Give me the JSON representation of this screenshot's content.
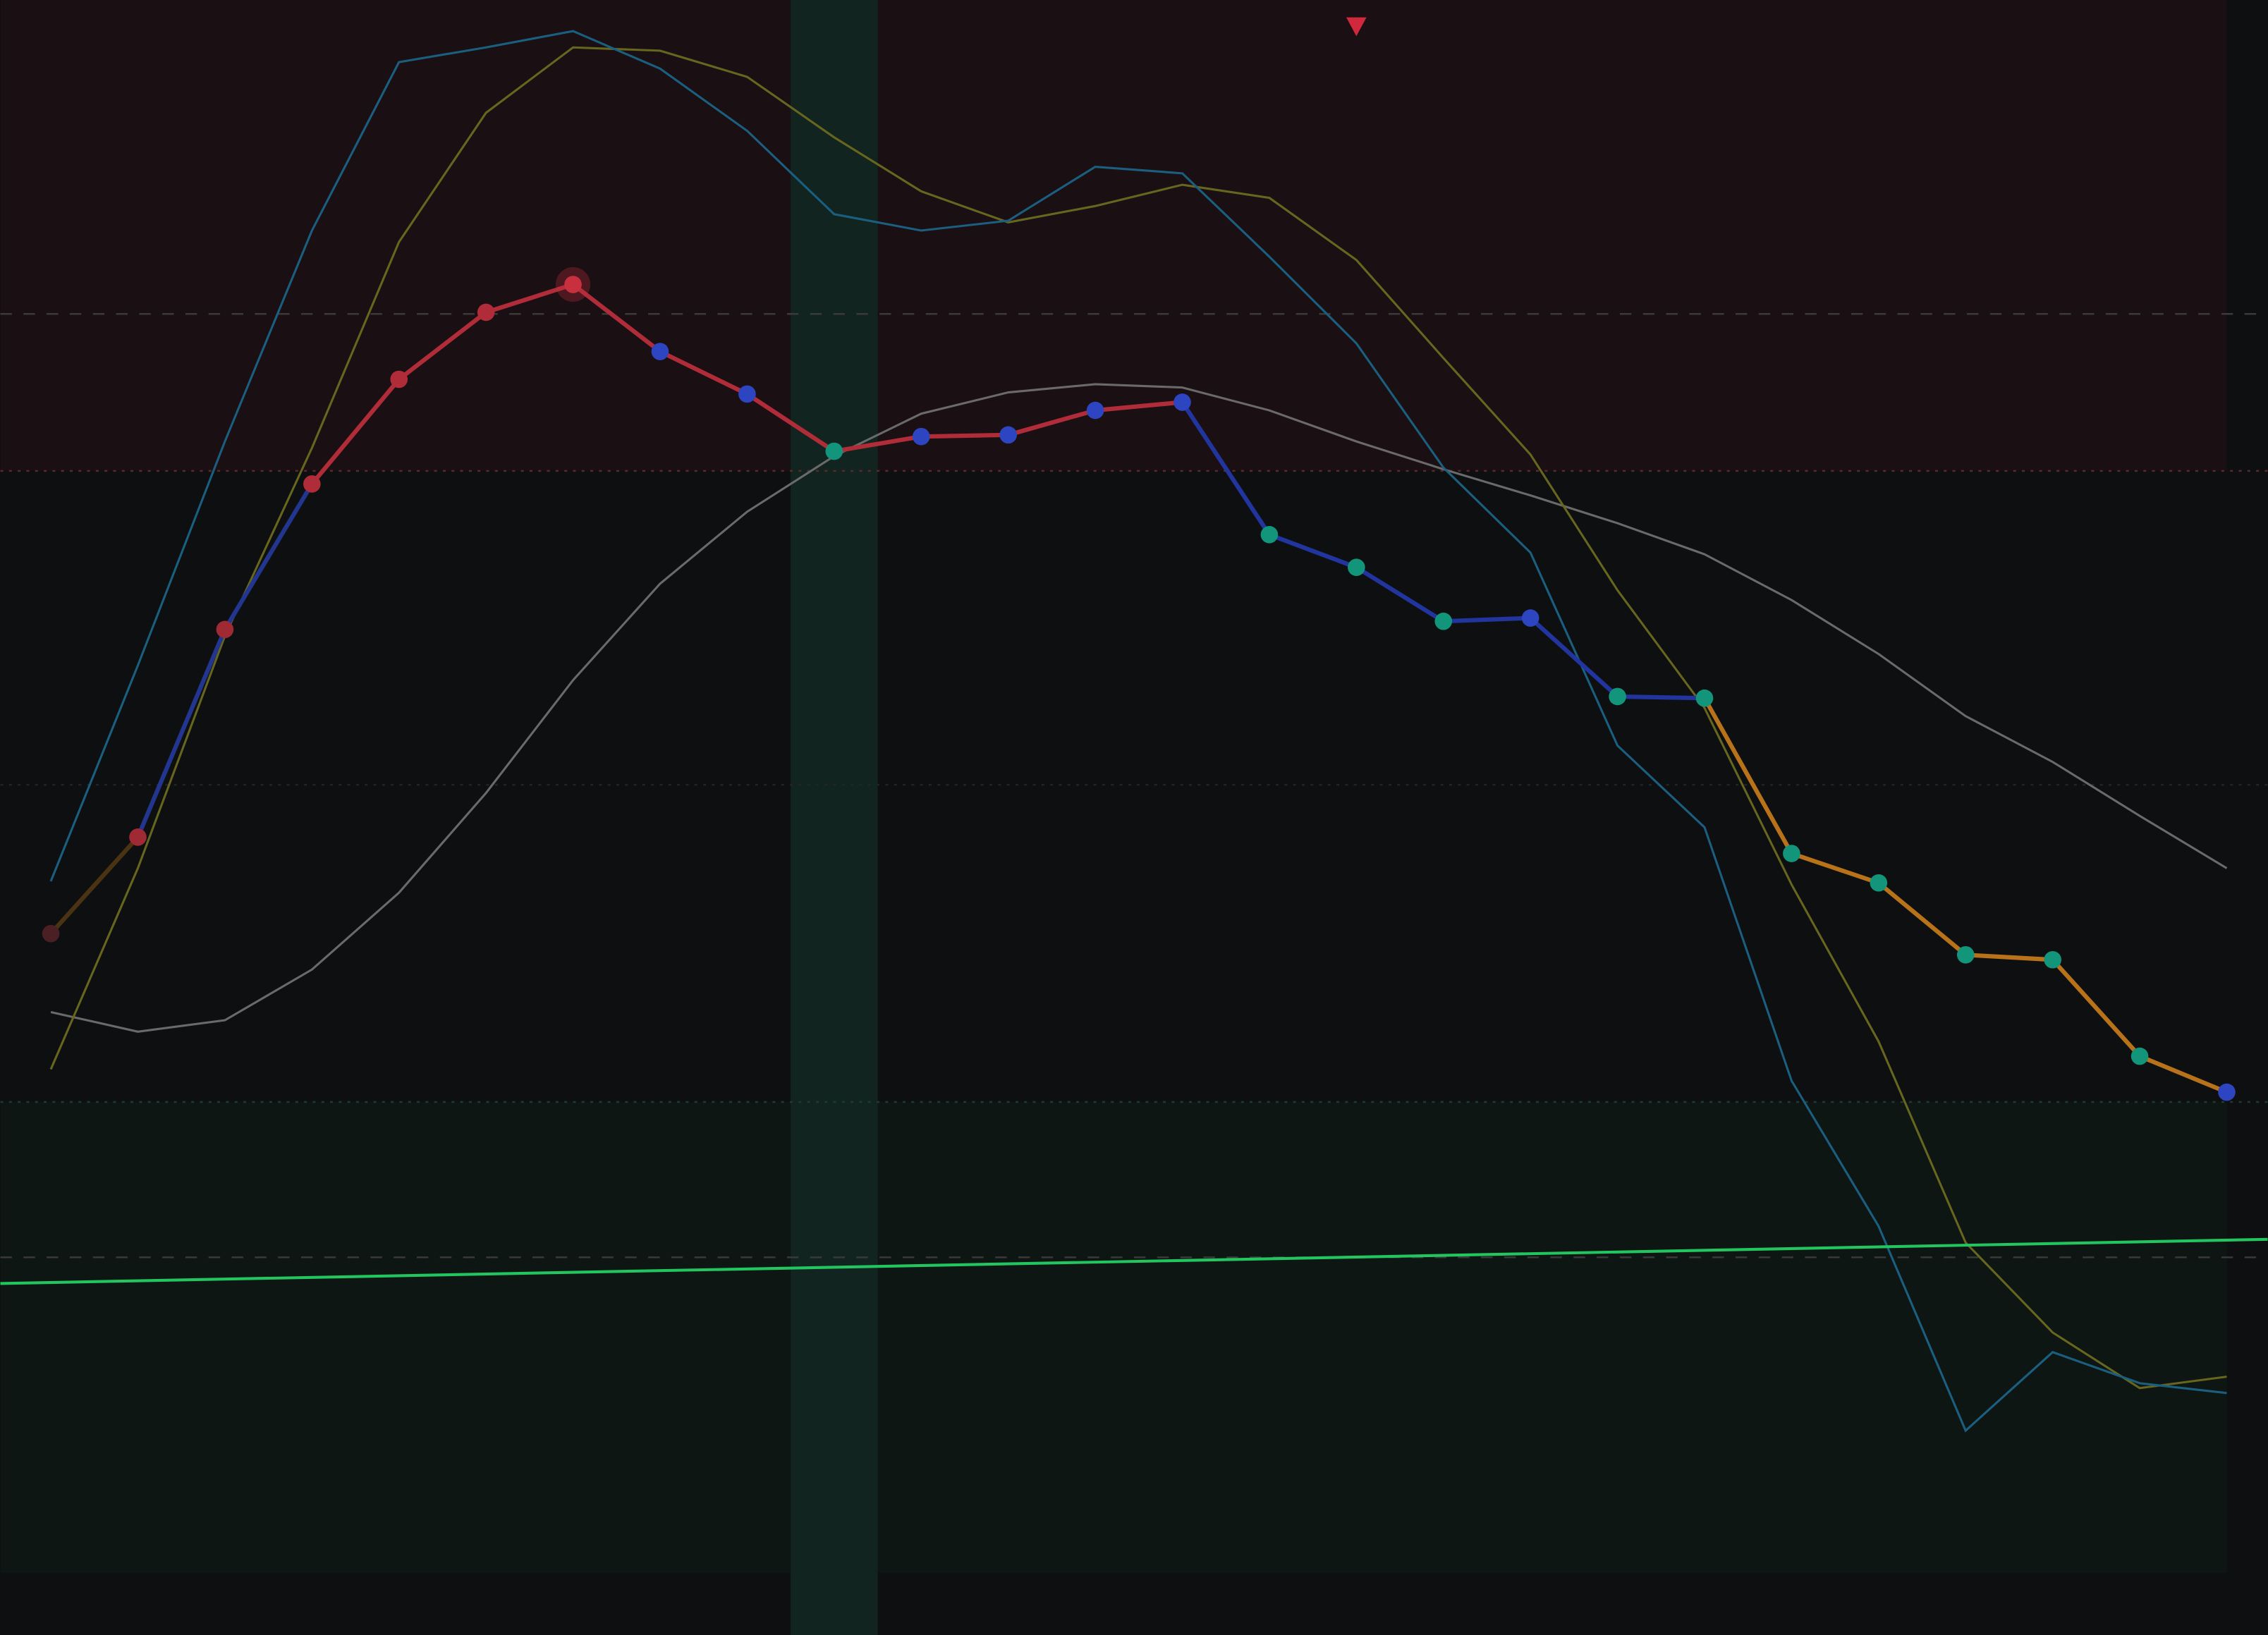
{
  "chart_data": {
    "type": "line",
    "x": [
      0,
      1,
      2,
      3,
      4,
      5,
      6,
      7,
      8,
      9,
      10,
      11,
      12,
      13,
      14,
      15,
      16,
      17,
      18,
      19,
      20,
      21,
      22,
      23,
      24,
      25
    ],
    "xlim": [
      -0.58,
      25.47
    ],
    "ylim": [
      0,
      100
    ],
    "background": "#0e0f10",
    "zones": [
      {
        "from": 71.2,
        "to": 100,
        "color": "#1a0f13"
      },
      {
        "from": 3.8,
        "to": 32.6,
        "color": "#0e1614"
      }
    ],
    "zone_xlim": [
      -0.58,
      25
    ],
    "levels": [
      {
        "value": 80.8,
        "color": "#3a3a3a",
        "dash": "8 8"
      },
      {
        "value": 71.2,
        "color": "#5a2a2a",
        "dash": "2 4"
      },
      {
        "value": 52.0,
        "color": "#242424",
        "dash": "2 4"
      },
      {
        "value": 32.6,
        "color": "#1f3a30",
        "dash": "2 4"
      },
      {
        "value": 23.1,
        "color": "#3a3a3a",
        "dash": "8 8"
      }
    ],
    "highlight_x": [
      8.5,
      9.5
    ],
    "highlight_color": "#12241f",
    "marker_x": 15,
    "marker_color": "#d0283c",
    "series": [
      {
        "color": "#6a6a6a",
        "values": [
          38.1,
          36.9,
          37.6,
          40.7,
          45.4,
          51.5,
          58.4,
          64.3,
          68.7,
          72.1,
          74.7,
          76.0,
          76.5,
          76.3,
          74.9,
          73.0,
          71.3,
          69.7,
          68.0,
          66.1,
          63.3,
          60.0,
          56.2,
          53.4,
          50.1,
          46.9
        ]
      },
      {
        "color": "#66661f",
        "values": [
          34.6,
          46.9,
          61.1,
          72.6,
          85.2,
          93.1,
          97.1,
          96.9,
          95.3,
          91.6,
          88.3,
          86.4,
          87.4,
          88.7,
          87.9,
          84.1,
          78.1,
          72.2,
          63.9,
          56.7,
          45.9,
          36.3,
          24.0,
          18.5,
          15.1,
          15.8
        ]
      },
      {
        "color": "#1b5f80",
        "values": [
          46.1,
          59.3,
          73.0,
          85.9,
          96.2,
          97.1,
          98.1,
          95.8,
          92.0,
          86.9,
          85.9,
          86.5,
          89.8,
          89.4,
          84.3,
          79.0,
          71.4,
          66.2,
          54.4,
          49.4,
          33.9,
          25.0,
          12.5,
          17.3,
          15.4,
          14.8
        ]
      },
      {
        "color": "#22c55e",
        "x": [
          -0.58,
          25.47
        ],
        "values": [
          21.5,
          24.2
        ]
      },
      {
        "values": [
          42.9,
          48.8,
          61.5,
          70.4,
          76.8,
          80.9,
          82.6,
          78.5,
          75.9,
          72.4,
          73.3,
          73.4,
          74.9,
          75.4,
          67.3,
          65.3,
          62.0,
          62.2,
          57.4,
          57.3,
          47.8,
          46.0,
          41.6,
          41.3,
          35.4,
          33.2
        ],
        "point_colors": [
          "#4a2024",
          "#a02a34",
          "#a02a34",
          "#b02c38",
          "#b02c38",
          "#b02c38",
          "#c8303e",
          "#2d45c0",
          "#2d45c0",
          "#12957a",
          "#2d45c0",
          "#2d45c0",
          "#2d45c0",
          "#2d45c0",
          "#12957a",
          "#12957a",
          "#12957a",
          "#2d45c0",
          "#12957a",
          "#12957a",
          "#12957a",
          "#12957a",
          "#12957a",
          "#12957a",
          "#12957a",
          "#2d45c0"
        ],
        "segment_colors": [
          "#4a3312",
          "#22358f",
          "#22358f",
          "#b02c38",
          "#b02c38",
          "#b02c38",
          "#b02c38",
          "#b02c38",
          "#b02c38",
          "#b02c38",
          "#b02c38",
          "#b02c38",
          "#b02c38",
          "#22359f",
          "#22359f",
          "#22359f",
          "#22359f",
          "#22359f",
          "#22359f",
          "#b8721a",
          "#b8721a",
          "#b8721a",
          "#b8721a",
          "#b8721a",
          "#b8721a"
        ],
        "peak_index": 6
      }
    ]
  }
}
